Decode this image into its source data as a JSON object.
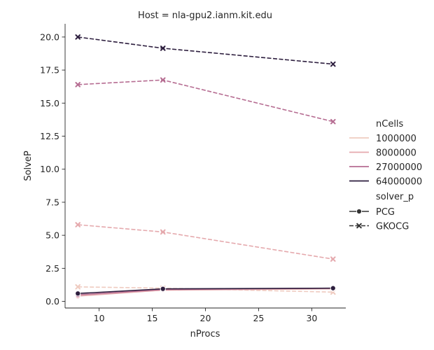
{
  "chart_data": {
    "type": "line",
    "title": "Host = nla-gpu2.ianm.kit.edu",
    "xlabel": "nProcs",
    "ylabel": "SolveP",
    "xlim": [
      6.8,
      33.2
    ],
    "ylim": [
      -0.5,
      21.0
    ],
    "xticks": [
      10,
      15,
      20,
      25,
      30
    ],
    "yticks": [
      0.0,
      2.5,
      5.0,
      7.5,
      10.0,
      12.5,
      15.0,
      17.5,
      20.0
    ],
    "x": [
      8,
      16,
      32
    ],
    "grid": false,
    "legend_position": "right",
    "legend": {
      "hue_title": "nCells",
      "hue_entries": [
        {
          "label": "1000000",
          "color": "#efcbc0"
        },
        {
          "label": "8000000",
          "color": "#e5a9ad"
        },
        {
          "label": "27000000",
          "color": "#b66d92"
        },
        {
          "label": "64000000",
          "color": "#2d1e3e"
        }
      ],
      "style_title": "solver_p",
      "style_entries": [
        {
          "label": "PCG",
          "marker": "circle",
          "dash": "solid"
        },
        {
          "label": "GKOCG",
          "marker": "x",
          "dash": "dashed"
        }
      ]
    },
    "series": [
      {
        "nCells": "1000000",
        "solver": "PCG",
        "color": "#efcbc0",
        "values": [
          0.45,
          0.85,
          0.95
        ]
      },
      {
        "nCells": "8000000",
        "solver": "PCG",
        "color": "#e5a9ad",
        "values": [
          0.4,
          0.85,
          0.95
        ]
      },
      {
        "nCells": "27000000",
        "solver": "PCG",
        "color": "#b66d92",
        "values": [
          0.5,
          0.9,
          1.0
        ]
      },
      {
        "nCells": "64000000",
        "solver": "PCG",
        "color": "#2d1e3e",
        "values": [
          0.6,
          0.95,
          1.0
        ]
      },
      {
        "nCells": "1000000",
        "solver": "GKOCG",
        "color": "#efcbc0",
        "values": [
          1.1,
          1.0,
          0.7
        ]
      },
      {
        "nCells": "8000000",
        "solver": "GKOCG",
        "color": "#e5a9ad",
        "values": [
          5.8,
          5.25,
          3.2
        ]
      },
      {
        "nCells": "27000000",
        "solver": "GKOCG",
        "color": "#b66d92",
        "values": [
          16.4,
          16.75,
          13.6
        ]
      },
      {
        "nCells": "64000000",
        "solver": "GKOCG",
        "color": "#2d1e3e",
        "values": [
          20.0,
          19.15,
          17.95
        ]
      }
    ]
  }
}
